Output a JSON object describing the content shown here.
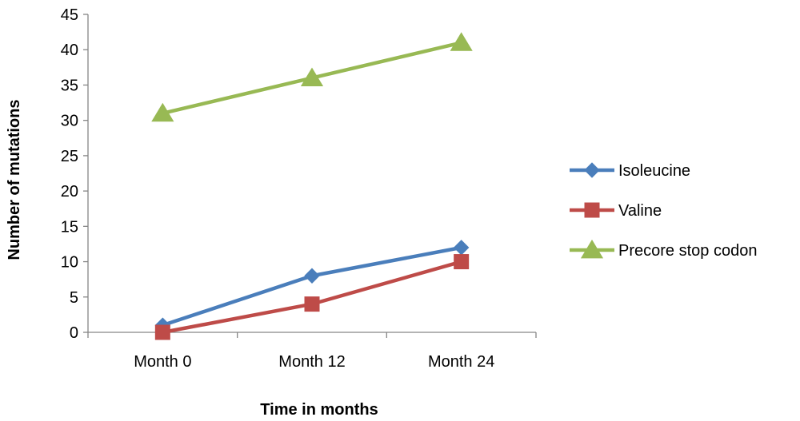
{
  "chart_data": {
    "type": "line",
    "title": "",
    "xlabel": "Time in months",
    "ylabel": "Number of mutations",
    "categories": [
      "Month 0",
      "Month 12",
      "Month 24"
    ],
    "ylim": [
      0,
      45
    ],
    "yticks": [
      0,
      5,
      10,
      15,
      20,
      25,
      30,
      35,
      40,
      45
    ],
    "grid": false,
    "legend_position": "right",
    "series": [
      {
        "name": "Isoleucine",
        "values": [
          1,
          8,
          12
        ],
        "color": "#4A7EBB",
        "marker": "diamond"
      },
      {
        "name": "Valine",
        "values": [
          0,
          4,
          10
        ],
        "color": "#BE4B48",
        "marker": "square"
      },
      {
        "name": "Precore stop codon",
        "values": [
          31,
          36,
          41
        ],
        "color": "#98B954",
        "marker": "triangle"
      }
    ]
  }
}
